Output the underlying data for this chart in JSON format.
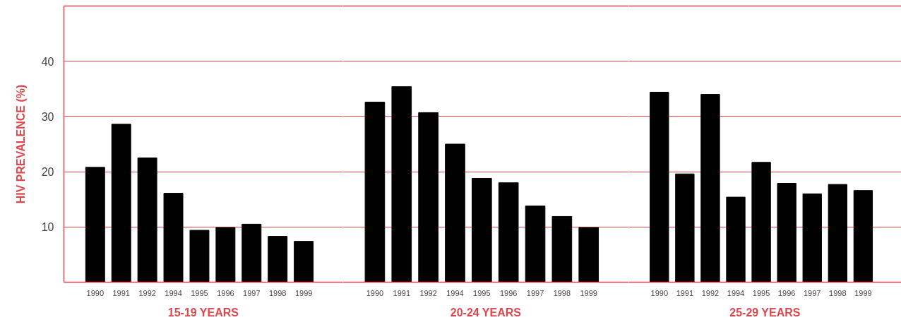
{
  "chart_data": [
    {
      "type": "bar",
      "categories": [
        "1990",
        "1991",
        "1992",
        "1994",
        "1995",
        "1996",
        "1997",
        "1998",
        "1999"
      ],
      "values": [
        20.8,
        28.6,
        22.5,
        16.1,
        9.4,
        9.9,
        10.5,
        8.3,
        7.4
      ],
      "color": "#000000",
      "xlabel": "15-19 YEARS",
      "ylabel": "HIV PREVALENCE (%)",
      "ylim": [
        0,
        50
      ],
      "yticks": [
        10,
        20,
        30,
        40
      ],
      "grid": "y"
    },
    {
      "type": "bar",
      "categories": [
        "1990",
        "1991",
        "1992",
        "1994",
        "1995",
        "1996",
        "1997",
        "1998",
        "1999"
      ],
      "values": [
        32.6,
        35.4,
        30.7,
        25.0,
        18.8,
        18.0,
        13.8,
        11.9,
        9.9
      ],
      "color": "#000000",
      "xlabel": "20-24 YEARS",
      "ylim": [
        0,
        50
      ],
      "yticks": [
        10,
        20,
        30,
        40
      ],
      "grid": "y",
      "tick_labels": "x"
    },
    {
      "type": "bar",
      "categories": [
        "1990",
        "1991",
        "1992",
        "1994",
        "1995",
        "1996",
        "1997",
        "1998",
        "1999"
      ],
      "values": [
        34.4,
        19.6,
        34.0,
        15.4,
        21.7,
        17.9,
        16.0,
        17.7,
        16.6
      ],
      "color": "#000000",
      "xlabel": "25-29 YEARS",
      "ylim": [
        0,
        50
      ],
      "yticks": [
        10,
        20,
        30,
        40
      ],
      "grid": "y",
      "tick_labels": "x"
    }
  ]
}
